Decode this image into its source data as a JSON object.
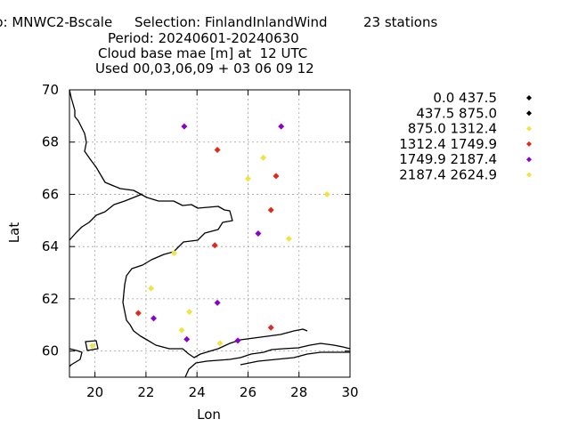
{
  "header": {
    "line1_left": "p: MNWC2-Bscale",
    "line1_mid": "Selection: FinlandInlandWind",
    "line1_right": "23 stations",
    "line2": "Period: 20240601-20240630",
    "line3": "Cloud base mae [m] at  12 UTC",
    "line4": "Used 00,03,06,09 + 03 06 09 12"
  },
  "chart_data": {
    "type": "scatter",
    "title": "Cloud base mae [m] at  12 UTC",
    "xlabel": "Lon",
    "ylabel": "Lat",
    "xlim": [
      19,
      30
    ],
    "ylim": [
      59,
      70
    ],
    "xticks": [
      20,
      22,
      24,
      26,
      28,
      30
    ],
    "yticks": [
      60,
      62,
      64,
      66,
      68,
      70
    ],
    "grid": true,
    "legend_position": "right",
    "series": [
      {
        "name": "0.0 437.5",
        "color": "#000000",
        "points": []
      },
      {
        "name": "437.5 875.0",
        "color": "#000000",
        "points": []
      },
      {
        "name": "875.0 1312.4",
        "color": "#f0e442",
        "points": [
          [
            26.6,
            67.4
          ],
          [
            26.0,
            66.6
          ],
          [
            29.1,
            66.0
          ],
          [
            27.6,
            64.3
          ],
          [
            23.1,
            63.75
          ],
          [
            22.2,
            62.4
          ],
          [
            23.7,
            61.5
          ],
          [
            23.4,
            60.8
          ],
          [
            24.9,
            60.3
          ],
          [
            19.9,
            60.2
          ]
        ]
      },
      {
        "name": "1312.4 1749.9",
        "color": "#dd2a1b",
        "points": [
          [
            24.8,
            67.7
          ],
          [
            27.1,
            66.7
          ],
          [
            26.9,
            65.4
          ],
          [
            24.7,
            64.05
          ],
          [
            21.7,
            61.45
          ],
          [
            26.9,
            60.9
          ]
        ]
      },
      {
        "name": "1749.9 2187.4",
        "color": "#8a00cc",
        "points": [
          [
            23.5,
            68.6
          ],
          [
            27.3,
            68.6
          ],
          [
            26.4,
            64.5
          ],
          [
            24.8,
            61.85
          ],
          [
            22.3,
            61.25
          ],
          [
            23.6,
            60.45
          ],
          [
            25.6,
            60.4
          ]
        ]
      },
      {
        "name": "2187.4 2624.9",
        "color": "#f0e442",
        "points": []
      }
    ]
  }
}
